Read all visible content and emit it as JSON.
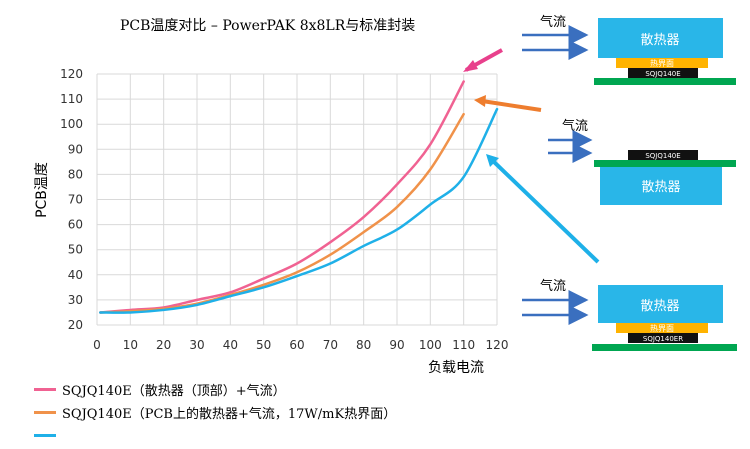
{
  "chart_data": {
    "type": "line",
    "title": "PCB温度对比 – PowerPAK 8x8LR与标准封装",
    "xlabel": "负载电流",
    "ylabel": "PCB温度",
    "xlim": [
      0,
      120
    ],
    "ylim": [
      20,
      120
    ],
    "xticks": [
      0,
      10,
      20,
      30,
      40,
      50,
      60,
      70,
      80,
      90,
      100,
      110,
      120
    ],
    "yticks": [
      20,
      30,
      40,
      50,
      60,
      70,
      80,
      90,
      100,
      110,
      120
    ],
    "grid": true,
    "legend_position": "bottom-left",
    "series": [
      {
        "name": "SQJQ140E（散热器（顶部）+气流）",
        "color": "#f06292",
        "x": [
          1,
          10,
          20,
          30,
          40,
          50,
          60,
          70,
          80,
          90,
          100,
          110
        ],
        "y": [
          25,
          26,
          27,
          30,
          33,
          38.5,
          44.5,
          53,
          63,
          76,
          92,
          117
        ]
      },
      {
        "name": "SQJQ140E（PCB上的散热器+气流，17W/mK热界面）",
        "color": "#f0924a",
        "x": [
          1,
          10,
          20,
          30,
          40,
          50,
          60,
          70,
          80,
          90,
          100,
          110
        ],
        "y": [
          25,
          25.5,
          26.5,
          28.5,
          32,
          36,
          41,
          48,
          57,
          67,
          82,
          104
        ]
      },
      {
        "name": "",
        "color": "#1fb0e8",
        "x": [
          1,
          10,
          20,
          30,
          40,
          50,
          60,
          70,
          80,
          90,
          100,
          110,
          120
        ],
        "y": [
          25,
          25,
          26,
          28,
          31.5,
          35,
          39.5,
          44.5,
          51.5,
          58,
          68,
          79,
          106
        ]
      }
    ]
  },
  "diagrams": [
    {
      "airflow": "气流",
      "heatsink": "散热器",
      "interface": "热界面",
      "chip": "SQJQ140E"
    },
    {
      "airflow": "气流",
      "heatsink": "散热器",
      "chip": "SQJQ140E"
    },
    {
      "airflow": "气流",
      "heatsink": "散热器",
      "interface": "热界面",
      "chip": "SQJQ140ER"
    }
  ],
  "colors": {
    "heatsink": "#29b6e8",
    "interface": "#ffb300",
    "pcb": "#00a651",
    "chip": "#111111",
    "arrow": "#3a6fbf",
    "pointer_pink": "#e8408c",
    "pointer_orange": "#ee7d2e",
    "pointer_blue": "#1eb0e8"
  }
}
